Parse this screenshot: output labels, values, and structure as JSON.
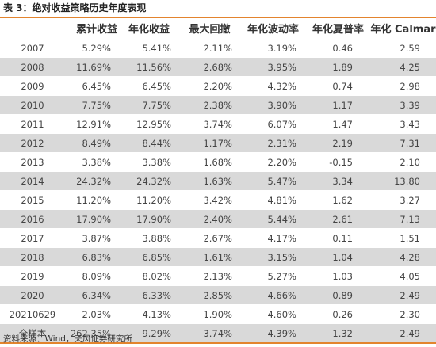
{
  "title": "表 3：绝对收益策略历史年度表现",
  "headers": [
    "",
    "累计收益",
    "年化收益",
    "最大回撤",
    "年化波动率",
    "年化夏普率",
    "年化 Calmar"
  ],
  "rows": [
    [
      "2007",
      "5.29%",
      "5.41%",
      "2.11%",
      "3.19%",
      "0.46",
      "2.59"
    ],
    [
      "2008",
      "11.69%",
      "11.56%",
      "2.68%",
      "3.95%",
      "1.89",
      "4.25"
    ],
    [
      "2009",
      "6.45%",
      "6.45%",
      "2.20%",
      "4.32%",
      "0.74",
      "2.98"
    ],
    [
      "2010",
      "7.75%",
      "7.75%",
      "2.38%",
      "3.90%",
      "1.17",
      "3.39"
    ],
    [
      "2011",
      "12.91%",
      "12.95%",
      "3.74%",
      "6.07%",
      "1.47",
      "3.43"
    ],
    [
      "2012",
      "8.49%",
      "8.44%",
      "1.17%",
      "2.31%",
      "2.19",
      "7.31"
    ],
    [
      "2013",
      "3.38%",
      "3.38%",
      "1.68%",
      "2.20%",
      "-0.15",
      "2.10"
    ],
    [
      "2014",
      "24.32%",
      "24.32%",
      "1.63%",
      "5.47%",
      "3.34",
      "13.80"
    ],
    [
      "2015",
      "11.20%",
      "11.20%",
      "3.42%",
      "4.81%",
      "1.62",
      "3.27"
    ],
    [
      "2016",
      "17.90%",
      "17.90%",
      "2.40%",
      "5.44%",
      "2.61",
      "7.13"
    ],
    [
      "2017",
      "3.87%",
      "3.88%",
      "2.67%",
      "4.17%",
      "0.11",
      "1.51"
    ],
    [
      "2018",
      "6.83%",
      "6.85%",
      "1.61%",
      "3.15%",
      "1.04",
      "4.28"
    ],
    [
      "2019",
      "8.09%",
      "8.02%",
      "2.13%",
      "5.27%",
      "1.03",
      "4.05"
    ],
    [
      "2020",
      "6.34%",
      "6.33%",
      "2.85%",
      "4.66%",
      "0.89",
      "2.49"
    ],
    [
      "20210629",
      "2.03%",
      "4.13%",
      "1.90%",
      "4.60%",
      "0.26",
      "2.30"
    ],
    [
      "全样本",
      "262.35%",
      "9.29%",
      "3.74%",
      "4.39%",
      "1.32",
      "2.49"
    ]
  ],
  "source": "资料来源：Wind，天风证券研究所",
  "colors": {
    "accent": "#e3842e",
    "stripe": "#d9d9d9"
  }
}
